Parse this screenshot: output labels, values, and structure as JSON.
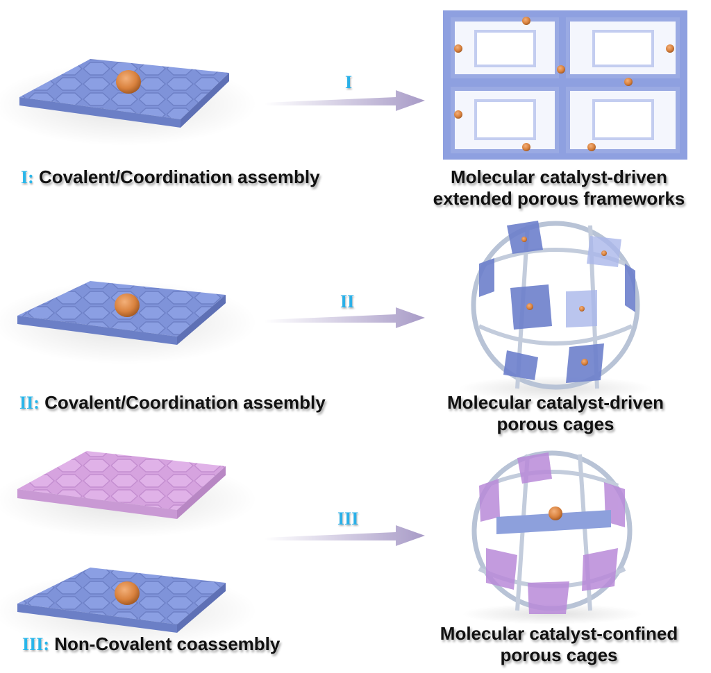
{
  "colors": {
    "sheet_blue": "#7f93d9",
    "sheet_pink": "#d9a6e0",
    "catalyst": "#d9823e",
    "arrow": "#a89bc7",
    "roman_numeral": "#2ab0e8"
  },
  "rows": [
    {
      "step": "I",
      "left_prefix": "I:",
      "left_label": "Covalent/Coordination assembly",
      "right_line1": "Molecular catalyst-driven",
      "right_line2": "extended porous frameworks"
    },
    {
      "step": "II",
      "left_prefix": "II:",
      "left_label": "Covalent/Coordination assembly",
      "right_line1": "Molecular catalyst-driven",
      "right_line2": "porous cages"
    },
    {
      "step": "III",
      "left_prefix": "III:",
      "left_label": "Non-Covalent coassembly",
      "right_line1": "Molecular catalyst-confined",
      "right_line2": "porous cages"
    }
  ]
}
